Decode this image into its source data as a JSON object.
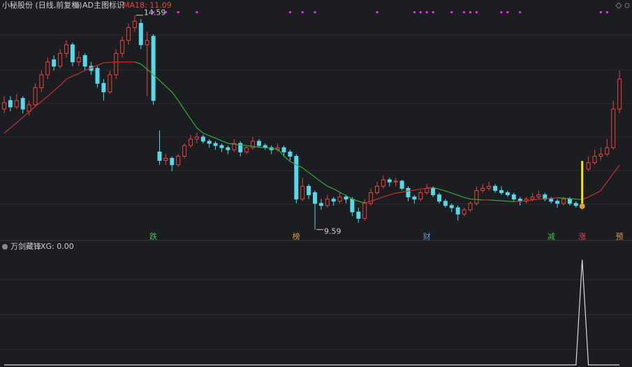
{
  "chart_data": {
    "type": "candlestick",
    "title": "小秘股份 (日线,前复权)",
    "indicator_name": "AD主图标识",
    "ma_label": "MA18: 11.09",
    "ylim": [
      9.4,
      14.7
    ],
    "up_color": "#e8433c",
    "down_color": "#55d8ea",
    "ma_up_color": "#c9302c",
    "ma_down_color": "#2fae3a",
    "candles": [
      [
        12.4,
        12.7,
        12.3,
        12.55
      ],
      [
        12.6,
        12.7,
        12.35,
        12.45
      ],
      [
        12.45,
        12.75,
        12.4,
        12.6
      ],
      [
        12.65,
        12.7,
        12.3,
        12.4
      ],
      [
        12.35,
        12.6,
        12.25,
        12.5
      ],
      [
        12.5,
        13.0,
        12.45,
        12.9
      ],
      [
        12.9,
        13.3,
        12.8,
        13.2
      ],
      [
        13.2,
        13.6,
        13.1,
        13.5
      ],
      [
        13.55,
        13.65,
        13.3,
        13.4
      ],
      [
        13.4,
        13.8,
        13.35,
        13.7
      ],
      [
        13.7,
        14.0,
        13.6,
        13.9
      ],
      [
        13.9,
        13.95,
        13.4,
        13.5
      ],
      [
        13.5,
        13.75,
        13.4,
        13.6
      ],
      [
        13.65,
        13.7,
        13.3,
        13.4
      ],
      [
        13.4,
        13.5,
        13.2,
        13.3
      ],
      [
        13.35,
        13.4,
        12.9,
        13.0
      ],
      [
        13.0,
        13.1,
        12.6,
        12.8
      ],
      [
        12.8,
        13.3,
        12.75,
        13.2
      ],
      [
        13.2,
        13.8,
        13.1,
        13.7
      ],
      [
        13.7,
        14.1,
        13.6,
        14.0
      ],
      [
        14.0,
        14.4,
        13.9,
        14.3
      ],
      [
        14.3,
        14.59,
        14.2,
        14.45
      ],
      [
        14.4,
        14.5,
        13.8,
        13.9
      ],
      [
        13.9,
        14.2,
        12.7,
        14.0
      ],
      [
        14.1,
        14.15,
        12.5,
        12.6
      ],
      [
        11.4,
        11.9,
        11.1,
        11.2
      ],
      [
        11.2,
        11.35,
        11.1,
        11.25
      ],
      [
        11.25,
        11.3,
        10.95,
        11.1
      ],
      [
        11.1,
        11.35,
        11.05,
        11.3
      ],
      [
        11.3,
        11.6,
        11.25,
        11.55
      ],
      [
        11.55,
        11.8,
        11.5,
        11.7
      ],
      [
        11.7,
        11.85,
        11.6,
        11.75
      ],
      [
        11.75,
        11.8,
        11.6,
        11.65
      ],
      [
        11.65,
        11.7,
        11.5,
        11.6
      ],
      [
        11.6,
        11.65,
        11.45,
        11.55
      ],
      [
        11.55,
        11.6,
        11.4,
        11.5
      ],
      [
        11.5,
        11.55,
        11.35,
        11.45
      ],
      [
        11.45,
        11.7,
        11.4,
        11.6
      ],
      [
        11.6,
        11.65,
        11.3,
        11.4
      ],
      [
        11.4,
        11.55,
        11.35,
        11.5
      ],
      [
        11.5,
        11.75,
        11.45,
        11.65
      ],
      [
        11.65,
        11.7,
        11.5,
        11.55
      ],
      [
        11.55,
        11.6,
        11.45,
        11.5
      ],
      [
        11.5,
        11.55,
        11.35,
        11.45
      ],
      [
        11.45,
        11.6,
        11.4,
        11.5
      ],
      [
        11.5,
        11.55,
        11.3,
        11.4
      ],
      [
        11.4,
        11.45,
        11.2,
        11.3
      ],
      [
        11.3,
        11.35,
        10.2,
        10.3
      ],
      [
        10.3,
        10.8,
        10.25,
        10.6
      ],
      [
        10.6,
        10.65,
        10.3,
        10.4
      ],
      [
        10.45,
        10.5,
        9.59,
        10.2
      ],
      [
        10.2,
        10.3,
        10.05,
        10.15
      ],
      [
        10.15,
        10.4,
        10.1,
        10.3
      ],
      [
        10.3,
        10.35,
        10.15,
        10.25
      ],
      [
        10.25,
        10.45,
        10.2,
        10.35
      ],
      [
        10.35,
        10.4,
        10.2,
        10.3
      ],
      [
        10.3,
        10.35,
        9.9,
        10.0
      ],
      [
        10.0,
        10.1,
        9.75,
        9.85
      ],
      [
        9.85,
        10.3,
        9.8,
        10.2
      ],
      [
        10.2,
        10.55,
        10.15,
        10.45
      ],
      [
        10.45,
        10.7,
        10.4,
        10.6
      ],
      [
        10.6,
        10.85,
        10.55,
        10.75
      ],
      [
        10.75,
        10.8,
        10.6,
        10.7
      ],
      [
        10.7,
        10.8,
        10.6,
        10.72
      ],
      [
        10.72,
        10.75,
        10.5,
        10.55
      ],
      [
        10.55,
        10.6,
        10.25,
        10.35
      ],
      [
        10.35,
        10.4,
        10.2,
        10.3
      ],
      [
        10.3,
        10.5,
        10.25,
        10.45
      ],
      [
        10.45,
        10.65,
        10.4,
        10.55
      ],
      [
        10.55,
        10.6,
        10.35,
        10.4
      ],
      [
        10.4,
        10.45,
        10.2,
        10.25
      ],
      [
        10.25,
        10.3,
        10.1,
        10.15
      ],
      [
        10.15,
        10.2,
        10.0,
        10.1
      ],
      [
        10.1,
        10.15,
        9.8,
        9.95
      ],
      [
        9.95,
        10.1,
        9.9,
        10.05
      ],
      [
        10.05,
        10.25,
        10.0,
        10.2
      ],
      [
        10.2,
        10.6,
        10.15,
        10.5
      ],
      [
        10.5,
        10.65,
        10.45,
        10.55
      ],
      [
        10.55,
        10.7,
        10.5,
        10.6
      ],
      [
        10.6,
        10.65,
        10.45,
        10.5
      ],
      [
        10.5,
        10.6,
        10.4,
        10.45
      ],
      [
        10.45,
        10.5,
        10.35,
        10.4
      ],
      [
        10.4,
        10.45,
        10.25,
        10.3
      ],
      [
        10.3,
        10.35,
        10.15,
        10.25
      ],
      [
        10.25,
        10.35,
        10.2,
        10.3
      ],
      [
        10.3,
        10.45,
        10.25,
        10.35
      ],
      [
        10.35,
        10.5,
        10.3,
        10.4
      ],
      [
        10.4,
        10.45,
        10.25,
        10.3
      ],
      [
        10.3,
        10.35,
        10.2,
        10.25
      ],
      [
        10.25,
        10.3,
        10.1,
        10.2
      ],
      [
        10.2,
        10.35,
        10.15,
        10.3
      ],
      [
        10.3,
        10.35,
        10.15,
        10.2
      ],
      [
        10.2,
        10.25,
        10.1,
        10.15
      ],
      [
        10.15,
        10.2,
        10.05,
        10.15
      ],
      [
        11.0,
        11.3,
        10.95,
        11.15
      ],
      [
        11.15,
        11.45,
        11.1,
        11.3
      ],
      [
        11.3,
        11.5,
        11.2,
        11.35
      ],
      [
        11.35,
        11.7,
        11.3,
        11.5
      ],
      [
        11.5,
        12.6,
        11.45,
        12.4
      ],
      [
        12.4,
        13.3,
        12.3,
        13.1
      ]
    ],
    "ma": [
      11.84,
      11.96,
      12.08,
      12.21,
      12.33,
      12.46,
      12.58,
      12.7,
      12.83,
      12.95,
      13.1,
      13.17,
      13.23,
      13.3,
      13.36,
      13.42,
      13.48,
      13.49,
      13.5,
      13.5,
      13.5,
      13.5,
      13.45,
      13.33,
      13.2,
      13.07,
      12.93,
      12.8,
      12.6,
      12.38,
      12.17,
      11.96,
      11.84,
      11.78,
      11.72,
      11.66,
      11.6,
      11.58,
      11.56,
      11.55,
      11.53,
      11.51,
      11.5,
      11.48,
      11.47,
      11.3,
      11.18,
      11.1,
      11.03,
      10.92,
      10.81,
      10.7,
      10.6,
      10.54,
      10.46,
      10.38,
      10.3,
      10.25,
      10.21,
      10.25,
      10.3,
      10.35,
      10.4,
      10.44,
      10.46,
      10.49,
      10.51,
      10.53,
      10.56,
      10.57,
      10.53,
      10.49,
      10.44,
      10.39,
      10.34,
      10.3,
      10.29,
      10.28,
      10.28,
      10.27,
      10.26,
      10.25,
      10.24,
      10.25,
      10.26,
      10.28,
      10.3,
      10.31,
      10.32,
      10.33,
      10.32,
      10.31,
      10.3,
      10.29,
      10.35,
      10.42,
      10.5,
      10.7,
      10.9,
      11.09
    ],
    "max_label": {
      "index": 21,
      "value": 14.59
    },
    "min_label": {
      "index": 50,
      "value": 9.59
    },
    "highlight": {
      "index": 93,
      "range": [
        10.2,
        11.19
      ],
      "color": "#ffe600"
    },
    "signal_dots": [
      24,
      26,
      28,
      31,
      46,
      48,
      50,
      60,
      66,
      67,
      68,
      69,
      72,
      74,
      75,
      76,
      80,
      81,
      83,
      96,
      97
    ],
    "signal_color": "#d63ad6",
    "annotations": [
      {
        "index": 24,
        "text": "跌",
        "color": "#3fc24a"
      },
      {
        "index": 47,
        "text": "榜",
        "color": "#e09a3c"
      },
      {
        "index": 68,
        "text": "财",
        "color": "#4aa3e0"
      },
      {
        "index": 88,
        "text": "减",
        "color": "#3fc24a"
      },
      {
        "index": 93,
        "text": "涨",
        "color": "#e8433c"
      },
      {
        "index": 99,
        "text": "预",
        "color": "#e09a3c"
      }
    ],
    "lower": {
      "name": "万剑藏锋",
      "label": "XG: 0.00",
      "ylim": [
        0,
        1.05
      ],
      "color": "#d8d8d8",
      "values": [
        0,
        0,
        0,
        0,
        0,
        0,
        0,
        0,
        0,
        0,
        0,
        0,
        0,
        0,
        0,
        0,
        0,
        0,
        0,
        0,
        0,
        0,
        0,
        0,
        0,
        0,
        0,
        0,
        0,
        0,
        0,
        0,
        0,
        0,
        0,
        0,
        0,
        0,
        0,
        0,
        0,
        0,
        0,
        0,
        0,
        0,
        0,
        0,
        0,
        0,
        0,
        0,
        0,
        0,
        0,
        0,
        0,
        0,
        0,
        0,
        0,
        0,
        0,
        0,
        0,
        0,
        0,
        0,
        0,
        0,
        0,
        0,
        0,
        0,
        0,
        0,
        0,
        0,
        0,
        0,
        0,
        0,
        0,
        0,
        0,
        0,
        0,
        0,
        0,
        0,
        0,
        0,
        0,
        1,
        0,
        0,
        0,
        0,
        0,
        0
      ]
    }
  }
}
